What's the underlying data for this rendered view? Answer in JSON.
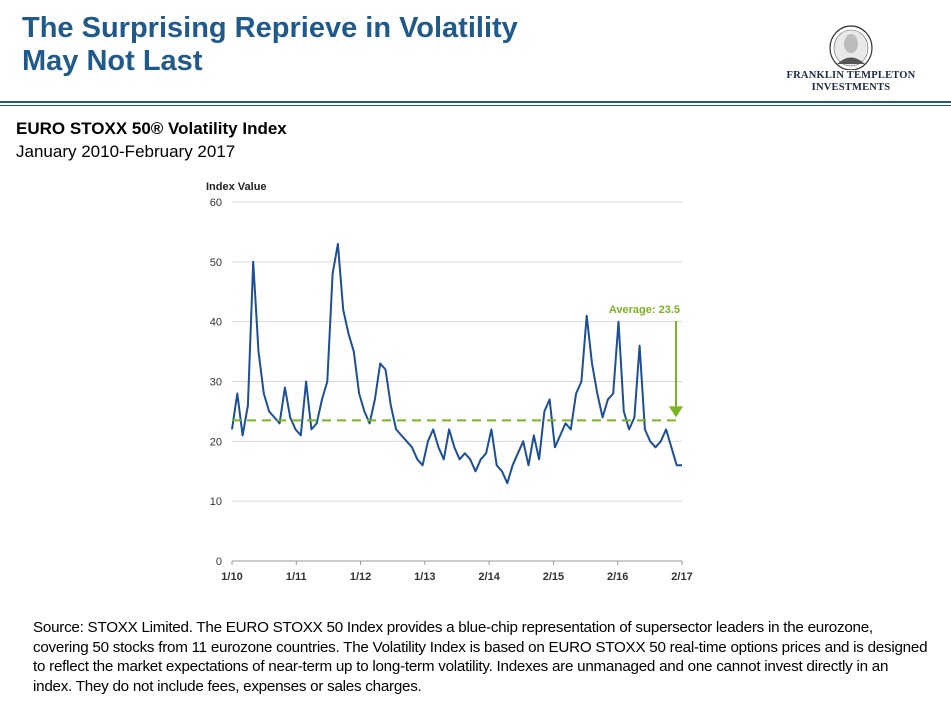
{
  "header": {
    "title_line1": "The Surprising Reprieve in Volatility",
    "title_line2": "May Not Last",
    "logo_line1": "FRANKLIN TEMPLETON",
    "logo_line2": "INVESTMENTS"
  },
  "colors": {
    "title": "#1f5a8a",
    "series": "#1c4f95",
    "average": "#7ab51d",
    "grid": "#d9d9d9"
  },
  "chart_data": {
    "type": "line",
    "title": "EURO STOXX 50® Volatility Index",
    "subtitle": "January 2010-February 2017",
    "ylabel": "Index Value",
    "xlabel": "",
    "ylim": [
      0,
      60
    ],
    "yticks": [
      "0",
      "10",
      "20",
      "30",
      "40",
      "50",
      "60"
    ],
    "grid": "horizontal",
    "xlim": [
      "2010-01",
      "2017-02"
    ],
    "xticks": [
      "1/10",
      "1/11",
      "1/12",
      "1/13",
      "2/14",
      "2/15",
      "2/16",
      "2/17"
    ],
    "average": {
      "label": "Average: 23.5",
      "value": 23.5
    },
    "series": [
      {
        "name": "",
        "x": [
          "2010-01",
          "2010-02",
          "2010-03",
          "2010-04",
          "2010-05",
          "2010-06",
          "2010-07",
          "2010-08",
          "2010-09",
          "2010-10",
          "2010-11",
          "2010-12",
          "2011-01",
          "2011-02",
          "2011-03",
          "2011-04",
          "2011-05",
          "2011-06",
          "2011-07",
          "2011-08",
          "2011-09",
          "2011-10",
          "2011-11",
          "2011-12",
          "2012-01",
          "2012-02",
          "2012-03",
          "2012-04",
          "2012-05",
          "2012-06",
          "2012-07",
          "2012-08",
          "2012-09",
          "2012-10",
          "2012-11",
          "2012-12",
          "2013-01",
          "2013-02",
          "2013-03",
          "2013-04",
          "2013-05",
          "2013-06",
          "2013-07",
          "2013-08",
          "2013-09",
          "2013-10",
          "2013-11",
          "2013-12",
          "2014-01",
          "2014-02",
          "2014-03",
          "2014-04",
          "2014-05",
          "2014-06",
          "2014-07",
          "2014-08",
          "2014-09",
          "2014-10",
          "2014-11",
          "2014-12",
          "2015-01",
          "2015-02",
          "2015-03",
          "2015-04",
          "2015-05",
          "2015-06",
          "2015-07",
          "2015-08",
          "2015-09",
          "2015-10",
          "2015-11",
          "2015-12",
          "2016-01",
          "2016-02",
          "2016-03",
          "2016-04",
          "2016-05",
          "2016-06",
          "2016-07",
          "2016-08",
          "2016-09",
          "2016-10",
          "2016-11",
          "2016-12",
          "2017-01",
          "2017-02"
        ],
        "values": [
          22,
          28,
          21,
          26,
          50,
          35,
          28,
          25,
          24,
          23,
          29,
          24,
          22,
          21,
          30,
          22,
          23,
          27,
          30,
          48,
          53,
          42,
          38,
          35,
          28,
          25,
          23,
          27,
          33,
          32,
          26,
          22,
          21,
          20,
          19,
          17,
          16,
          20,
          22,
          19,
          17,
          22,
          19,
          17,
          18,
          17,
          15,
          17,
          18,
          22,
          16,
          15,
          13,
          16,
          18,
          20,
          16,
          21,
          17,
          25,
          27,
          19,
          21,
          23,
          22,
          28,
          30,
          41,
          33,
          28,
          24,
          27,
          28,
          40,
          25,
          22,
          24,
          36,
          22,
          20,
          19,
          20,
          22,
          19,
          16,
          16
        ]
      }
    ]
  },
  "footnote": "Source: STOXX Limited. The EURO STOXX 50 Index provides a blue-chip representation of supersector leaders in the eurozone, covering 50 stocks from 11 eurozone countries. The Volatility  Index is based on EURO STOXX 50 real-time options prices and is designed to reflect the market expectations of near-term up to long-term volatility.  Indexes are unmanaged and one cannot invest directly in an index. They do not include fees, expenses or sales charges."
}
